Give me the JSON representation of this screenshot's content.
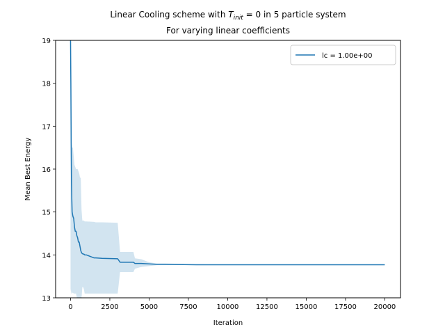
{
  "chart_data": {
    "type": "line",
    "title": {
      "prefix": "Linear Cooling scheme with ",
      "symbol": "T",
      "symbol_sub": "init",
      "suffix": " = 0 in 5 particle system"
    },
    "subtitle": "For varying linear coefficients",
    "xlabel": "Iteration",
    "ylabel": "Mean Best Energy",
    "xlim": [
      -950,
      21000
    ],
    "ylim": [
      13,
      19
    ],
    "x_ticks": [
      0,
      2500,
      5000,
      7500,
      10000,
      12500,
      15000,
      17500,
      20000
    ],
    "y_ticks": [
      13,
      14,
      15,
      16,
      17,
      18,
      19
    ],
    "grid": false,
    "legend_position": "upper right",
    "series": [
      {
        "name": "lc = 1.00e+00",
        "color": "#1f77b4",
        "x": [
          0,
          20,
          40,
          60,
          80,
          100,
          150,
          200,
          250,
          300,
          350,
          400,
          450,
          500,
          550,
          600,
          650,
          700,
          750,
          800,
          850,
          900,
          1000,
          1500,
          1600,
          2000,
          3000,
          3150,
          3200,
          4000,
          4100,
          4500,
          5000,
          5500,
          6000,
          8000,
          20000
        ],
        "y": [
          19.0,
          18.0,
          16.6,
          15.7,
          15.3,
          15.0,
          14.9,
          14.85,
          14.65,
          14.55,
          14.55,
          14.45,
          14.4,
          14.3,
          14.3,
          14.2,
          14.1,
          14.05,
          14.03,
          14.02,
          14.02,
          14.0,
          14.0,
          13.93,
          13.93,
          13.92,
          13.91,
          13.83,
          13.83,
          13.83,
          13.8,
          13.8,
          13.79,
          13.78,
          13.78,
          13.77,
          13.77
        ],
        "band_upper": [
          19.0,
          18.0,
          16.7,
          16.6,
          16.55,
          16.5,
          16.5,
          16.3,
          16.1,
          16.05,
          16.0,
          16.0,
          16.0,
          15.95,
          15.9,
          15.8,
          15.8,
          15.05,
          14.8,
          14.8,
          14.8,
          14.78,
          14.78,
          14.77,
          14.76,
          14.76,
          14.75,
          14.07,
          14.07,
          14.07,
          13.92,
          13.9,
          13.83,
          13.8,
          13.8,
          13.78,
          13.77
        ],
        "band_lower": [
          13.15,
          13.2,
          13.1,
          13.1,
          13.15,
          13.1,
          13.12,
          13.1,
          13.1,
          13.1,
          13.1,
          13.0,
          13.0,
          13.0,
          13.0,
          13.0,
          13.0,
          13.0,
          13.25,
          13.25,
          13.2,
          13.1,
          13.1,
          13.1,
          13.1,
          13.1,
          13.1,
          13.6,
          13.6,
          13.6,
          13.68,
          13.72,
          13.74,
          13.76,
          13.76,
          13.77,
          13.77
        ]
      }
    ]
  }
}
